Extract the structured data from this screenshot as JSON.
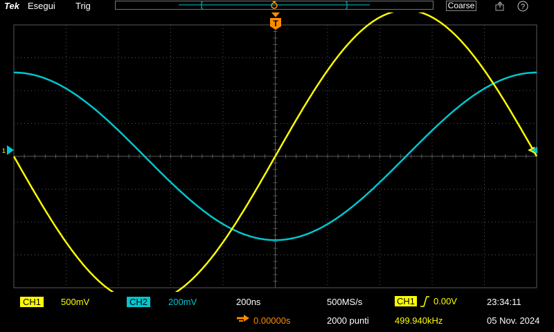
{
  "menubar": {
    "brand": "Tek",
    "run_label": "Esegui",
    "trig_label": "Trig",
    "coarse_label": "Coarse"
  },
  "icons": {
    "export": "export-icon",
    "help": "help-icon",
    "help_glyph": "?",
    "trigger_marker_glyph": "T",
    "ch1_marker_glyph": "1",
    "ch2_marker_glyph": "2"
  },
  "colors": {
    "ch1": "#ffff00",
    "ch2": "#00c8d0",
    "trigger": "#ff8c00",
    "grid": "#5a5a5a"
  },
  "channels": {
    "ch1": {
      "label": "CH1",
      "scale": "500mV"
    },
    "ch2": {
      "label": "CH2",
      "scale": "200mV"
    }
  },
  "timebase": {
    "scale": "200ns",
    "delay": "0.00000s",
    "sample_rate": "500MS/s",
    "record_length": "2000 punti"
  },
  "trigger": {
    "source": "CH1",
    "level": "0.00V",
    "frequency": "499.940kHz"
  },
  "clock": {
    "time": "23:34:11",
    "date": "05 Nov. 2024"
  },
  "chart_data": {
    "type": "line",
    "x_unit": "s",
    "x": {
      "divisions": 10,
      "per_division": "200ns",
      "range_ns": [
        -1000,
        1000
      ]
    },
    "y_divisions": 8,
    "series": [
      {
        "name": "CH1",
        "frequency_khz": 499.94,
        "amplitude_div": 4.45,
        "phase_deg": 0,
        "amplitude_v": 2.225
      },
      {
        "name": "CH2",
        "frequency_khz": 499.94,
        "amplitude_div": 2.55,
        "phase_deg": -90,
        "amplitude_v": 0.51
      }
    ]
  }
}
